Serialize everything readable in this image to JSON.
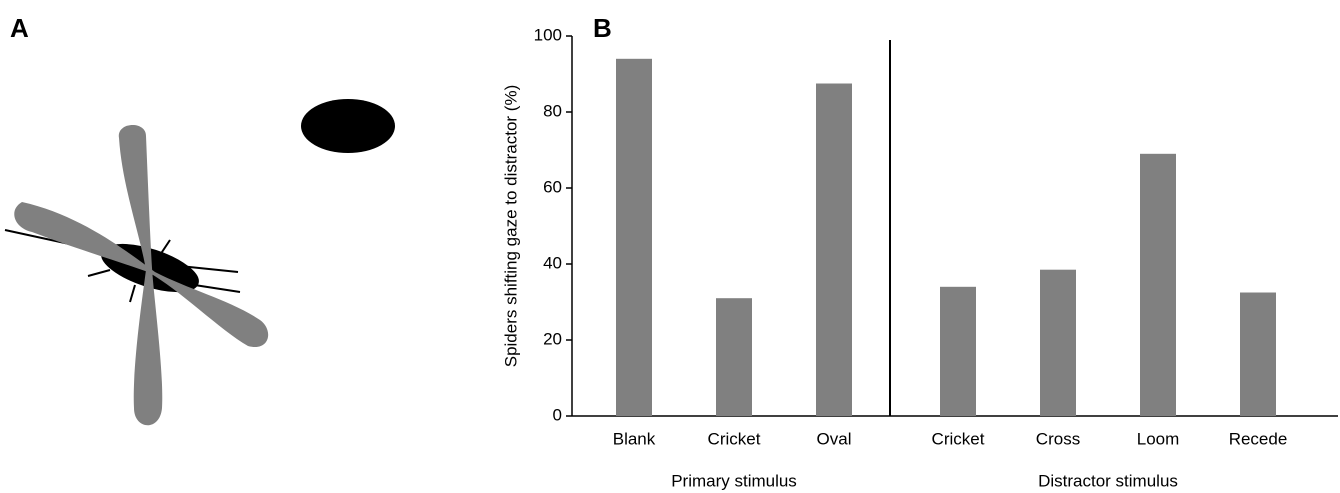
{
  "panel_labels": [
    "A",
    "B"
  ],
  "chart_data": {
    "type": "bar",
    "ylabel": "Spiders shifting gaze to distractor (%)",
    "color": "#808080",
    "ylim": [
      0,
      100
    ],
    "yticks": [
      0,
      20,
      40,
      60,
      80,
      100
    ],
    "groups": [
      {
        "label": "Primary stimulus",
        "categories": [
          "Blank",
          "Cricket",
          "Oval"
        ],
        "values": [
          94,
          31,
          87.5
        ]
      },
      {
        "label": "Distractor stimulus",
        "categories": [
          "Cricket",
          "Cross",
          "Loom",
          "Recede"
        ],
        "values": [
          34,
          38.5,
          69,
          32.5
        ]
      }
    ]
  }
}
